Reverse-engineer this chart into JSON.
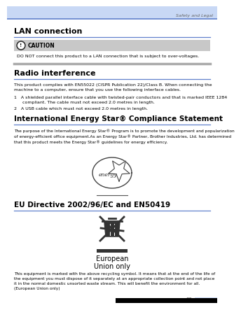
{
  "bg_color": "#ffffff",
  "header_bar_color": "#c8d8f5",
  "header_line_color": "#6080cc",
  "header_text": "Safety and Legal",
  "footer_page_num": "89",
  "footer_page_bg": "#c8d8f5",
  "section1_title": "LAN connection",
  "blue_line_color": "#6080cc",
  "caution_bg": "#c8c8c8",
  "caution_text": "CAUTION",
  "caution_body": "DO NOT connect this product to a LAN connection that is subject to over-voltages.",
  "caution_bottom_line": "#aaaaaa",
  "section2_title": "Radio interference",
  "section2_body1": "This product complies with EN55022 (CISPR Publication 22)/Class B. When connecting the machine to a computer, ensure that you use the following interface cables.",
  "section2_item1": "1   A shielded parallel interface cable with twisted-pair conductors and that is marked IEEE 1284 compliant. The cable must not exceed 2.0 metres in length.",
  "section2_item2": "2   A USB cable which must not exceed 2.0 metres in length.",
  "section3_title": "International Energy Star® Compliance Statement",
  "section3_body": "The purpose of the International Energy Star® Program is to promote the development and popularization of energy-efficient office equipment.As an Energy Star® Partner, Brother Industries, Ltd. has determined that this product meets the Energy Star® guidelines for energy efficiency.",
  "section4_title": "EU Directive 2002/96/EC and EN50419",
  "eu_label1": "European",
  "eu_label2": "Union only",
  "section4_body": "This equipment is marked with the above recycling symbol. It means that at the end of the life of the equipment you must dispose of it separately at an appropriate collection point and not place it in the normal domestic unsorted waste stream. This will benefit the environment for all. (European Union only)"
}
